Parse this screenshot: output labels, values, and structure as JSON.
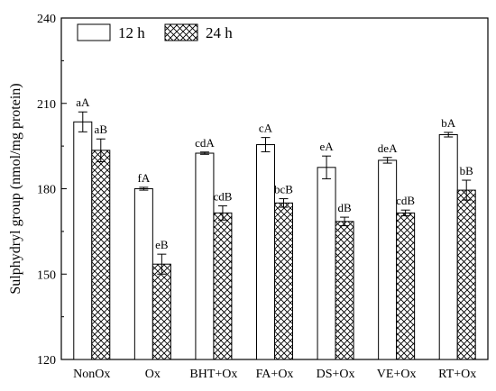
{
  "chart_data": {
    "type": "bar",
    "title": "",
    "xlabel": "",
    "ylabel": "Sulphydryl group (nmol/mg protein)",
    "ylim": [
      120,
      240
    ],
    "yticks": [
      120,
      150,
      180,
      210,
      240
    ],
    "categories": [
      "NonOx",
      "Ox",
      "BHT+Ox",
      "FA+Ox",
      "DS+Ox",
      "VE+Ox",
      "RT+Ox"
    ],
    "legend_position": "top-left",
    "series": [
      {
        "name": "12 h",
        "pattern": "white",
        "values": [
          203.5,
          180.0,
          192.5,
          195.5,
          187.5,
          190.0,
          199.0
        ],
        "errors": [
          3.5,
          0.5,
          0.4,
          2.5,
          4.0,
          1.0,
          0.8
        ],
        "labels": [
          "aA",
          "fA",
          "cdA",
          "cA",
          "eA",
          "deA",
          "bA"
        ]
      },
      {
        "name": "24 h",
        "pattern": "crosshatch",
        "values": [
          193.5,
          153.5,
          171.5,
          175.0,
          168.5,
          171.5,
          179.5
        ],
        "errors": [
          4.0,
          3.5,
          2.5,
          1.5,
          1.5,
          1.0,
          3.5
        ],
        "labels": [
          "aB",
          "eB",
          "cdB",
          "bcB",
          "dB",
          "cdB",
          "bB"
        ]
      }
    ]
  }
}
